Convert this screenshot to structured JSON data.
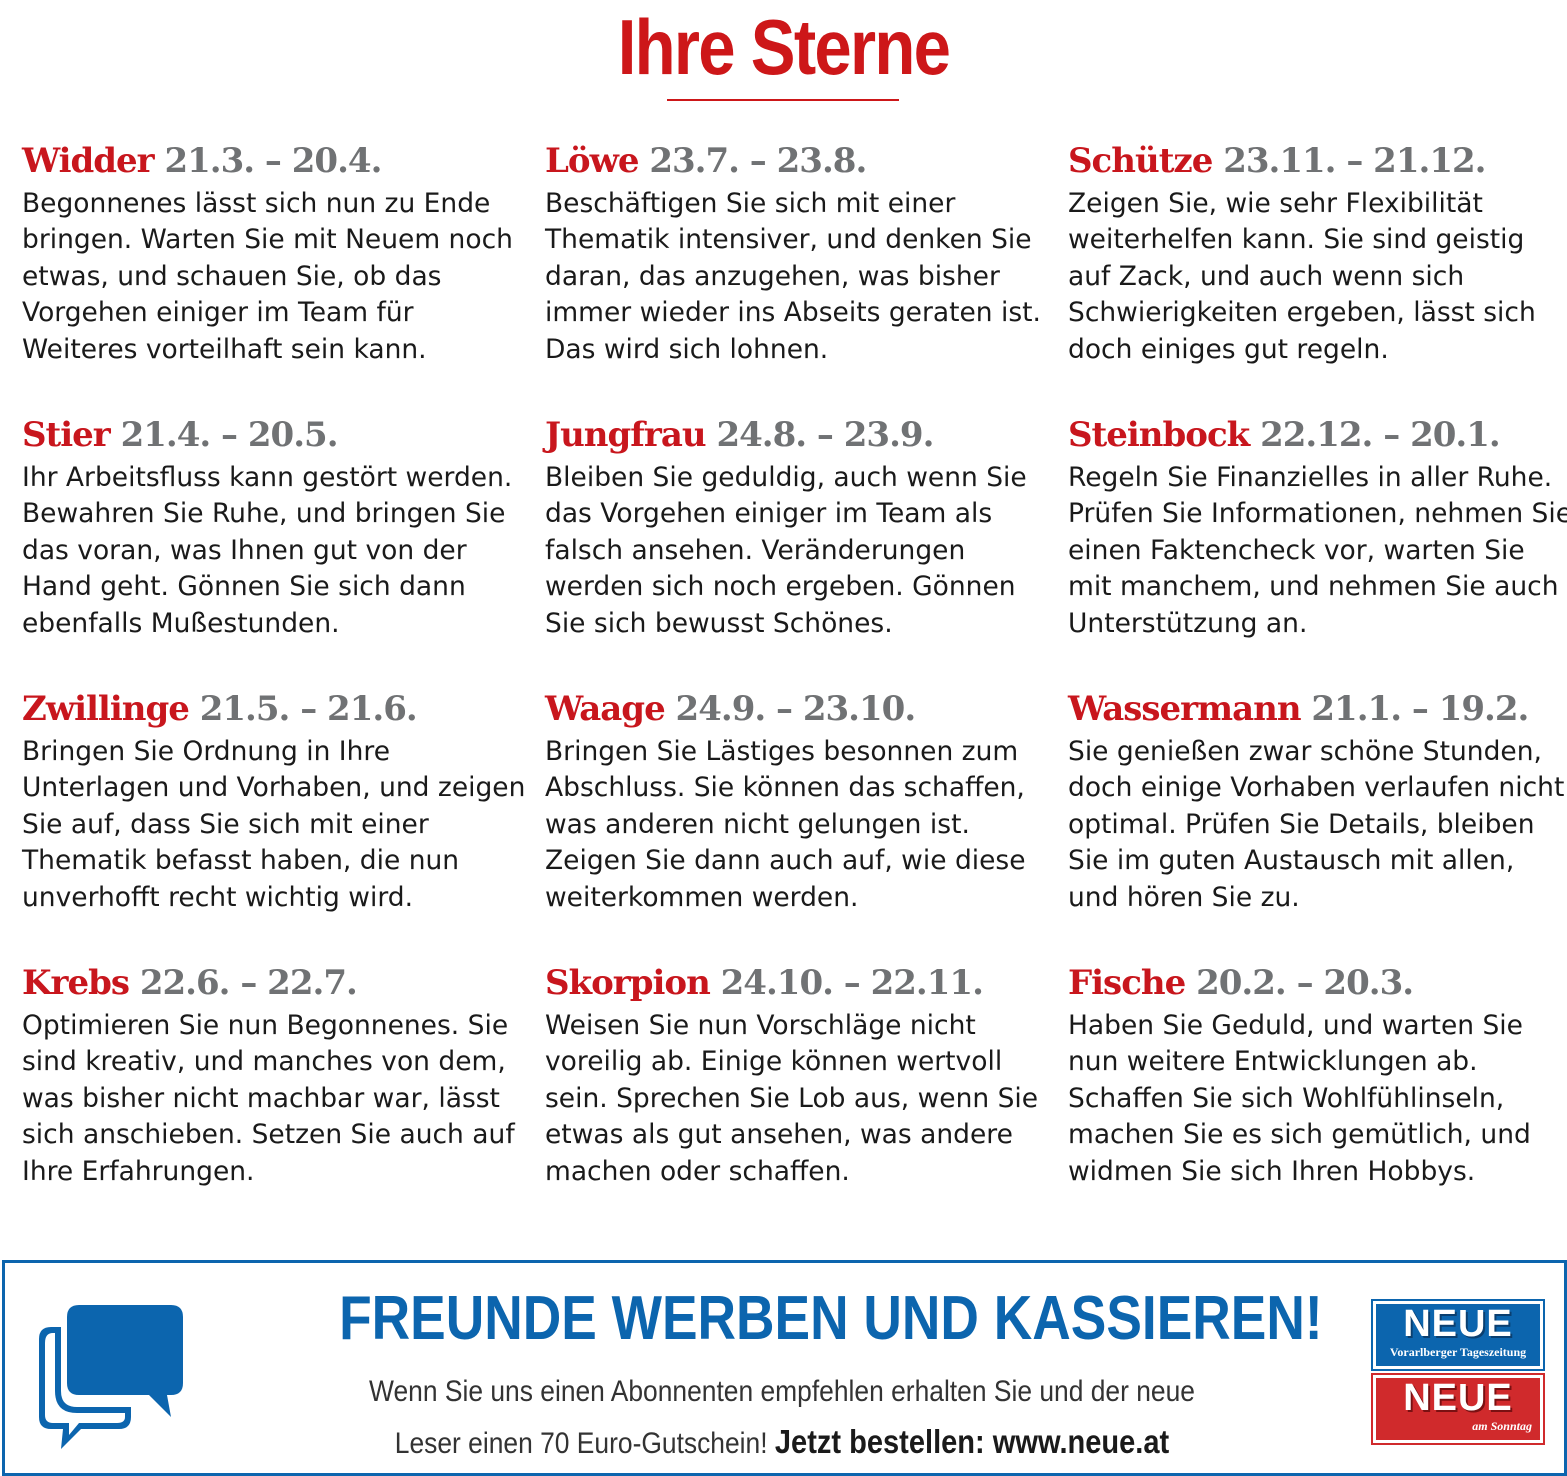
{
  "header": {
    "title": "Ihre Sterne"
  },
  "signs": [
    {
      "name": "Widder",
      "dates": "21.3. – 20.4.",
      "text": "Begonnenes lässt sich nun zu Ende bringen. Warten Sie mit Neuem noch etwas, und schauen Sie, ob das Vorgehen einiger im Team für Weiteres vorteilhaft sein kann."
    },
    {
      "name": "Stier",
      "dates": "21.4. – 20.5.",
      "text": "Ihr Arbeitsfluss kann gestört werden. Bewahren Sie Ruhe, und bringen Sie das voran, was Ihnen gut von der Hand geht. Gönnen Sie sich dann ebenfalls Mußestunden."
    },
    {
      "name": "Zwillinge",
      "dates": "21.5. – 21.6.",
      "text": "Bringen Sie Ordnung in Ihre Unterlagen und Vorhaben, und zeigen Sie auf, dass Sie sich mit einer Thematik befasst haben, die nun unverhofft recht wichtig wird."
    },
    {
      "name": "Krebs",
      "dates": "22.6. – 22.7.",
      "text": "Optimieren Sie nun Begonnenes. Sie sind kreativ, und manches von dem, was bisher nicht machbar war, lässt sich anschieben. Setzen Sie auch auf Ihre Erfahrungen."
    },
    {
      "name": "Löwe",
      "dates": "23.7. – 23.8.",
      "text": "Beschäftigen Sie sich mit einer Thematik intensiver, und denken Sie daran, das anzugehen, was bisher immer wieder ins Abseits geraten ist. Das wird sich lohnen."
    },
    {
      "name": "Jungfrau",
      "dates": "24.8. – 23.9.",
      "text": "Bleiben Sie geduldig, auch wenn Sie das Vorgehen einiger im Team als falsch ansehen. Veränderungen werden sich noch ergeben. Gönnen Sie sich bewusst Schönes."
    },
    {
      "name": "Waage",
      "dates": "24.9. – 23.10.",
      "text": "Bringen Sie Lästiges besonnen zum Abschluss. Sie können das schaffen, was anderen nicht gelungen ist. Zeigen Sie dann auch auf, wie diese weiterkommen werden."
    },
    {
      "name": "Skorpion",
      "dates": "24.10. – 22.11.",
      "text": "Weisen Sie nun Vorschläge nicht voreilig ab. Einige können wertvoll sein. Sprechen Sie Lob aus, wenn Sie etwas als gut ansehen, was andere machen oder schaffen."
    },
    {
      "name": "Schütze",
      "dates": "23.11. – 21.12.",
      "text": "Zeigen Sie, wie sehr Flexibilität weiterhelfen kann. Sie sind geistig auf Zack, und auch wenn sich Schwierigkeiten ergeben, lässt sich doch einiges gut regeln."
    },
    {
      "name": "Steinbock",
      "dates": "22.12. – 20.1.",
      "text": "Regeln Sie Finanzielles in aller Ruhe. Prüfen Sie Informationen, nehmen Sie einen Faktencheck vor, warten Sie mit manchem, und nehmen Sie auch Unterstützung an."
    },
    {
      "name": "Wassermann",
      "dates": "21.1. – 19.2.",
      "text": "Sie genießen zwar schöne Stunden, doch einige Vorhaben verlaufen nicht optimal. Prüfen Sie Details, bleiben Sie im guten Austausch mit allen, und hören Sie zu."
    },
    {
      "name": "Fische",
      "dates": "20.2. – 20.3.",
      "text": "Haben Sie Geduld, und warten Sie nun weitere Entwicklungen ab. Schaffen Sie sich Wohlfühlinseln, machen Sie es sich gemütlich, und widmen Sie sich Ihren Hobbys."
    }
  ],
  "promo": {
    "headline": "FREUNDE WERBEN UND KASSIEREN!",
    "line1": "Wenn Sie uns einen Abonnenten empfehlen erhalten Sie und der neue",
    "line2_plain": "Leser einen 70 Euro-Gutschein!",
    "line2_cta": "Jetzt bestellen: www.neue.at",
    "icon": "chat-bubbles-icon",
    "logo_blue_word": "NEUE",
    "logo_blue_sub": "Vorarlberger Tageszeitung",
    "logo_red_word": "NEUE",
    "logo_red_sub": "am Sonntag"
  },
  "colors": {
    "red": "#cd1719",
    "grey_date": "#707274",
    "blue": "#0c65ae"
  }
}
